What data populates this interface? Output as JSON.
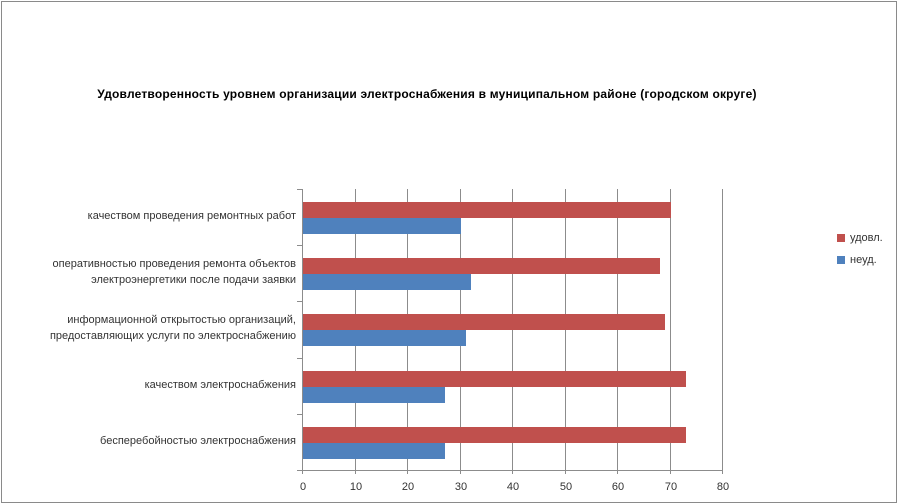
{
  "title": "Удовлетворенность уровнем организации электроснабжения в муниципальном районе (городском округе)",
  "chart_data": {
    "type": "bar",
    "orientation": "horizontal",
    "title": "Удовлетворенность уровнем организации электроснабжения в муниципальном районе (городском округе)",
    "categories": [
      "качеством проведения ремонтных работ",
      "оперативностью проведения ремонта объектов\nэлектроэнергетики после подачи заявки",
      "информационной открытостью организаций,\nпредоставляющих услуги по электроснабжению",
      "качеством электроснабжения",
      "бесперебойностью электроснабжения"
    ],
    "series": [
      {
        "name": "удовл.",
        "color": "#c0504d",
        "values": [
          70,
          68,
          69,
          73,
          73
        ]
      },
      {
        "name": "неуд.",
        "color": "#4f81bd",
        "values": [
          30,
          32,
          31,
          27,
          27
        ]
      }
    ],
    "xlim": [
      0,
      80
    ],
    "x_ticks": [
      0,
      10,
      20,
      30,
      40,
      50,
      60,
      70,
      80
    ],
    "xlabel": "",
    "ylabel": "",
    "grid": true,
    "legend_position": "right"
  },
  "colors": {
    "grid": "#8c8c8c",
    "axis": "#8c8c8c",
    "frame": "#8a8a8a",
    "text": "#333333",
    "title_text": "#000000",
    "background": "#ffffff"
  }
}
